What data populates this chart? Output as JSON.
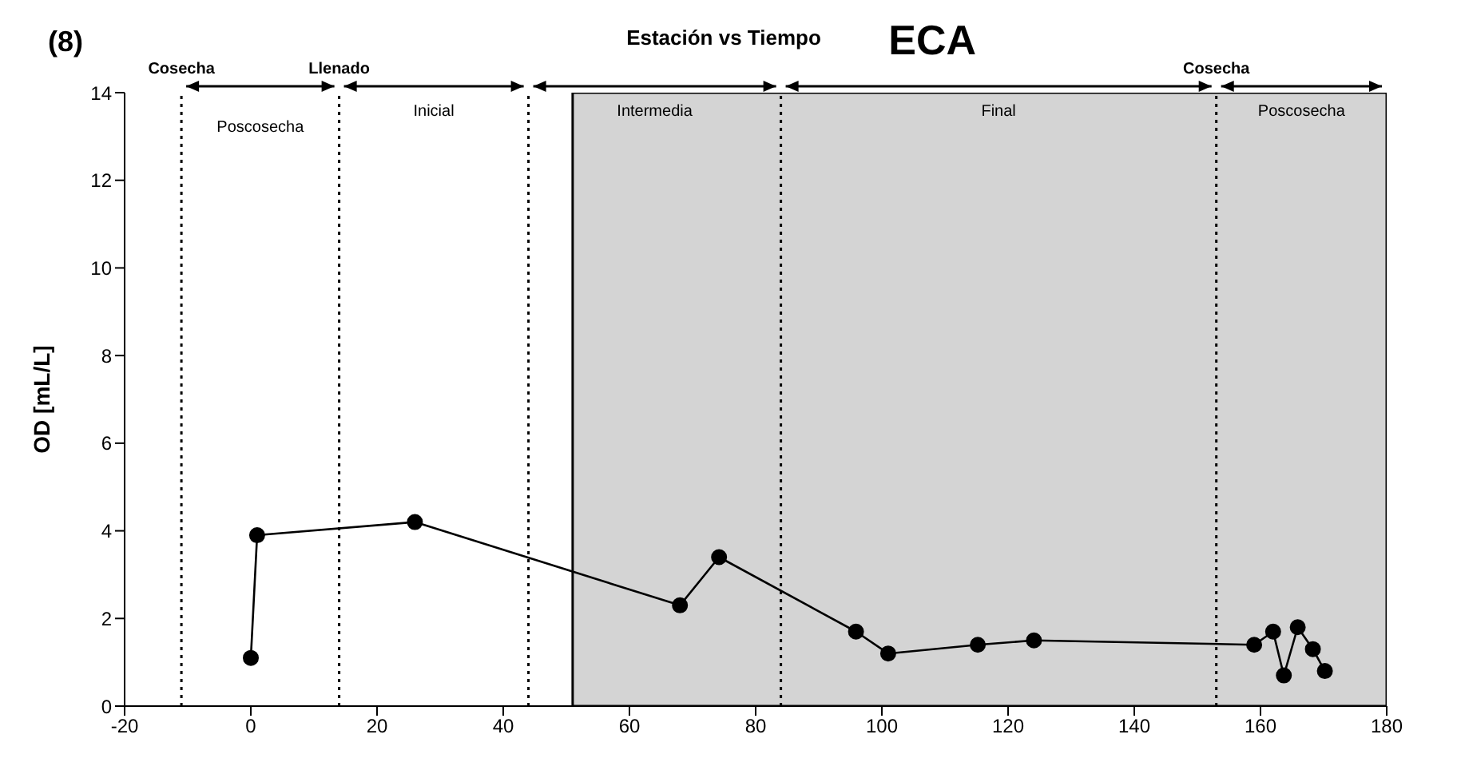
{
  "chart_data": {
    "type": "line",
    "title": "Estación vs Tiempo",
    "subtitle": "ECA",
    "ylabel": "OD [mL/L]",
    "x": [
      0,
      1,
      26,
      68,
      74.2,
      95.9,
      101,
      115.2,
      124.1,
      159,
      162,
      163.7,
      165.9,
      168.3,
      170.2
    ],
    "series": [
      {
        "color": "#000000",
        "values": [
          1.1,
          3.9,
          4.2,
          2.3,
          3.4,
          1.7,
          1.2,
          1.4,
          1.5,
          1.4,
          1.7,
          0.7,
          1.8,
          1.3,
          0.8
        ]
      }
    ],
    "xlim": [
      -20,
      180
    ],
    "xticks": [
      -20,
      0,
      20,
      40,
      60,
      80,
      100,
      120,
      140,
      160,
      180
    ],
    "ylim": [
      0,
      14
    ],
    "yticks": [
      0,
      2,
      4,
      6,
      8,
      10,
      12,
      14
    ],
    "grid": false,
    "legend": false,
    "marker": "circle",
    "line_style": "solid",
    "bands": [
      {
        "axis": "x",
        "from": 51,
        "to": 180,
        "color": "#d4d4d4"
      }
    ],
    "ref_lines": [
      {
        "axis": "x",
        "value": -11,
        "label": "Cosecha",
        "line_style": "dotted"
      },
      {
        "axis": "x",
        "value": 14,
        "label": "Llenado",
        "line_style": "dotted"
      },
      {
        "axis": "x",
        "value": 44,
        "line_style": "dotted"
      },
      {
        "axis": "x",
        "value": 84,
        "line_style": "dotted"
      },
      {
        "axis": "x",
        "value": 153,
        "label": "Cosecha",
        "line_style": "dotted"
      }
    ],
    "annotations": [
      "(8)",
      "Poscosecha",
      "Inicial",
      "Intermedia",
      "Final",
      "Poscosecha"
    ]
  }
}
